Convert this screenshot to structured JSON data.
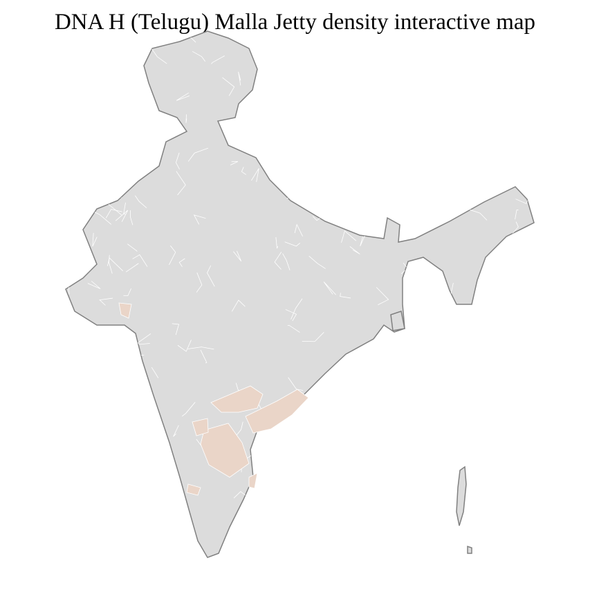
{
  "title": "DNA H (Telugu) Malla Jetty density interactive map",
  "colors": {
    "base_fill": "#dcdcdc",
    "highlight_fill": "#ead5c8",
    "state_border": "#808080",
    "district_border": "#ffffff"
  }
}
